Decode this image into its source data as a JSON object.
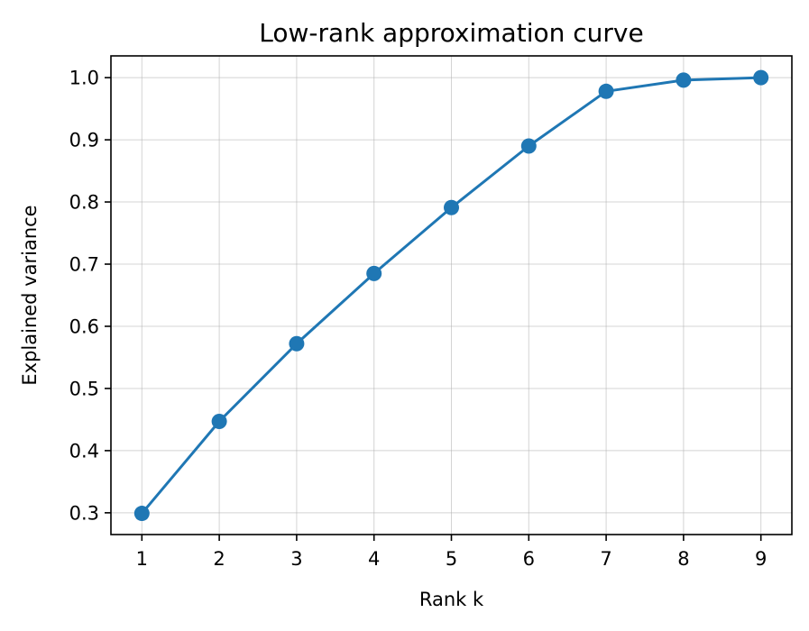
{
  "chart_data": {
    "type": "line",
    "title": "Low-rank approximation curve",
    "xlabel": "Rank k",
    "ylabel": "Explained variance",
    "x": [
      1,
      2,
      3,
      4,
      5,
      6,
      7,
      8,
      9
    ],
    "series": [
      {
        "values": [
          0.299,
          0.447,
          0.572,
          0.685,
          0.791,
          0.89,
          0.978,
          0.996,
          1.0
        ],
        "color": "#1f77b4",
        "marker": "circle"
      }
    ],
    "xlim": [
      0.6,
      9.4
    ],
    "ylim": [
      0.265,
      1.035
    ],
    "xticks": [
      1,
      2,
      3,
      4,
      5,
      6,
      7,
      8,
      9
    ],
    "yticks": [
      0.3,
      0.4,
      0.5,
      0.6,
      0.7,
      0.8,
      0.9,
      1.0
    ],
    "ytick_labels": [
      "0.3",
      "0.4",
      "0.5",
      "0.6",
      "0.7",
      "0.8",
      "0.9",
      "1.0"
    ],
    "grid": true,
    "legend": "none"
  }
}
